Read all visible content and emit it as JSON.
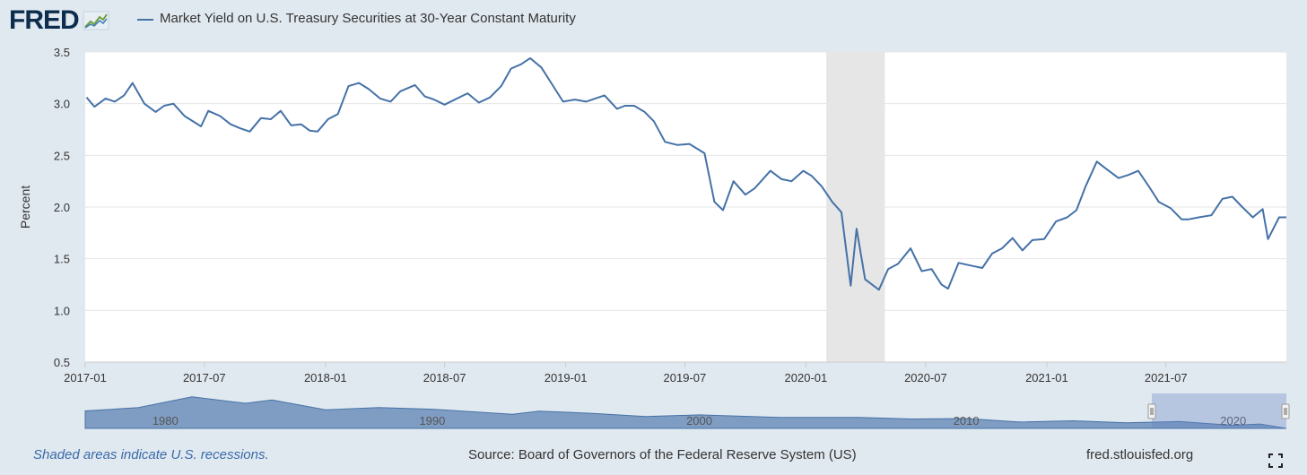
{
  "header": {
    "logo_text": "FRED",
    "series_title": "Market Yield on U.S. Treasury Securities at 30-Year Constant Maturity"
  },
  "footer": {
    "recession_note": "Shaded areas indicate U.S. recessions.",
    "source": "Source: Board of Governors of the Federal Reserve System (US)",
    "url": "fred.stlouisfed.org"
  },
  "colors": {
    "series": "#4572a7",
    "recession": "#e6e6e6",
    "background": "#e1e9f0",
    "navigator_fill": "#6d8fba"
  },
  "chart_data": {
    "type": "line",
    "title": "Market Yield on U.S. Treasury Securities at 30-Year Constant Maturity",
    "xlabel": "",
    "ylabel": "Percent",
    "ylim": [
      0.5,
      3.5
    ],
    "yticks": [
      "0.5",
      "1.0",
      "1.5",
      "2.0",
      "2.5",
      "3.0",
      "3.5"
    ],
    "xticks": [
      "2017-01",
      "2017-07",
      "2018-01",
      "2018-07",
      "2019-01",
      "2019-07",
      "2020-01",
      "2020-07",
      "2021-01",
      "2021-07"
    ],
    "xlim": [
      "2017-01-01",
      "2021-12-31"
    ],
    "grid": true,
    "legend_position": "top-left",
    "recession_shading": [
      {
        "start": "2020-02-01",
        "end": "2020-04-30"
      }
    ],
    "series": [
      {
        "name": "Market Yield on U.S. Treasury Securities at 30-Year Constant Maturity",
        "x": [
          "2017-01-03",
          "2017-01-15",
          "2017-02-01",
          "2017-02-15",
          "2017-03-01",
          "2017-03-14",
          "2017-04-01",
          "2017-04-18",
          "2017-05-01",
          "2017-05-15",
          "2017-06-01",
          "2017-06-26",
          "2017-07-07",
          "2017-07-25",
          "2017-08-10",
          "2017-08-25",
          "2017-09-08",
          "2017-09-25",
          "2017-10-10",
          "2017-10-25",
          "2017-11-10",
          "2017-11-25",
          "2017-12-08",
          "2017-12-20",
          "2018-01-05",
          "2018-01-20",
          "2018-02-05",
          "2018-02-21",
          "2018-03-08",
          "2018-03-25",
          "2018-04-10",
          "2018-04-25",
          "2018-05-17",
          "2018-06-01",
          "2018-06-15",
          "2018-07-01",
          "2018-07-20",
          "2018-08-05",
          "2018-08-22",
          "2018-09-08",
          "2018-09-25",
          "2018-10-10",
          "2018-10-25",
          "2018-11-08",
          "2018-11-25",
          "2018-12-10",
          "2018-12-28",
          "2019-01-15",
          "2019-02-01",
          "2019-02-15",
          "2019-03-01",
          "2019-03-20",
          "2019-04-01",
          "2019-04-15",
          "2019-05-01",
          "2019-05-15",
          "2019-06-01",
          "2019-06-20",
          "2019-07-08",
          "2019-07-31",
          "2019-08-15",
          "2019-08-28",
          "2019-09-13",
          "2019-10-01",
          "2019-10-15",
          "2019-11-08",
          "2019-11-25",
          "2019-12-10",
          "2019-12-28",
          "2020-01-10",
          "2020-01-25",
          "2020-02-10",
          "2020-02-24",
          "2020-03-09",
          "2020-03-18",
          "2020-03-31",
          "2020-04-21",
          "2020-05-05",
          "2020-05-20",
          "2020-06-08",
          "2020-06-25",
          "2020-07-10",
          "2020-07-25",
          "2020-08-04",
          "2020-08-20",
          "2020-09-10",
          "2020-09-25",
          "2020-10-10",
          "2020-10-25",
          "2020-11-10",
          "2020-11-25",
          "2020-12-10",
          "2020-12-28",
          "2021-01-15",
          "2021-02-01",
          "2021-02-15",
          "2021-03-01",
          "2021-03-18",
          "2021-04-01",
          "2021-04-20",
          "2021-05-05",
          "2021-05-20",
          "2021-06-05",
          "2021-06-20",
          "2021-07-08",
          "2021-07-25",
          "2021-08-04",
          "2021-08-20",
          "2021-09-08",
          "2021-09-25",
          "2021-10-10",
          "2021-10-25",
          "2021-11-10",
          "2021-11-25",
          "2021-12-03",
          "2021-12-20",
          "2021-12-31"
        ],
        "y": [
          3.06,
          2.97,
          3.05,
          3.02,
          3.08,
          3.2,
          3.0,
          2.92,
          2.98,
          3.0,
          2.88,
          2.78,
          2.93,
          2.88,
          2.8,
          2.76,
          2.73,
          2.86,
          2.85,
          2.93,
          2.79,
          2.8,
          2.74,
          2.73,
          2.85,
          2.9,
          3.17,
          3.2,
          3.14,
          3.05,
          3.02,
          3.12,
          3.18,
          3.07,
          3.04,
          2.99,
          3.05,
          3.1,
          3.01,
          3.06,
          3.17,
          3.34,
          3.38,
          3.44,
          3.35,
          3.2,
          3.02,
          3.04,
          3.02,
          3.05,
          3.08,
          2.95,
          2.98,
          2.98,
          2.92,
          2.83,
          2.63,
          2.6,
          2.61,
          2.52,
          2.05,
          1.97,
          2.25,
          2.12,
          2.18,
          2.35,
          2.27,
          2.25,
          2.35,
          2.3,
          2.2,
          2.05,
          1.95,
          1.24,
          1.79,
          1.3,
          1.2,
          1.4,
          1.45,
          1.6,
          1.38,
          1.4,
          1.25,
          1.21,
          1.46,
          1.43,
          1.41,
          1.55,
          1.6,
          1.7,
          1.58,
          1.68,
          1.69,
          1.86,
          1.9,
          1.97,
          2.2,
          2.44,
          2.37,
          2.28,
          2.31,
          2.35,
          2.2,
          2.05,
          1.99,
          1.88,
          1.88,
          1.9,
          1.92,
          2.08,
          2.1,
          2.0,
          1.9,
          1.98,
          1.69,
          1.9,
          1.9
        ]
      }
    ]
  },
  "navigator": {
    "labels": [
      "1980",
      "1990",
      "2000",
      "2010",
      "2020"
    ]
  }
}
